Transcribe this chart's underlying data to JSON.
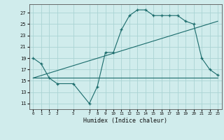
{
  "xlabel": "Humidex (Indice chaleur)",
  "bg_color": "#d0ecec",
  "grid_color": "#aad4d4",
  "line_color": "#1a6b6b",
  "x_ticks": [
    0,
    1,
    2,
    3,
    5,
    7,
    8,
    9,
    10,
    11,
    12,
    13,
    14,
    15,
    16,
    17,
    18,
    19,
    20,
    21,
    22,
    23
  ],
  "y_ticks": [
    11,
    13,
    15,
    17,
    19,
    21,
    23,
    25,
    27
  ],
  "ylim": [
    10.0,
    28.5
  ],
  "xlim": [
    -0.5,
    23.5
  ],
  "curve1_x": [
    0,
    1,
    2,
    3,
    5,
    7,
    8,
    9,
    10,
    11,
    12,
    13,
    14,
    15,
    16,
    17,
    18,
    19,
    20,
    21,
    22,
    23
  ],
  "curve1_y": [
    19,
    18,
    15.5,
    14.5,
    14.5,
    11,
    14,
    20,
    20,
    24,
    26.5,
    27.5,
    27.5,
    26.5,
    26.5,
    26.5,
    26.5,
    25.5,
    25,
    19,
    17,
    16
  ],
  "trend1_x": [
    0,
    23
  ],
  "trend1_y": [
    15.5,
    25.5
  ],
  "trend2_x": [
    0,
    23
  ],
  "trend2_y": [
    15.5,
    15.5
  ]
}
